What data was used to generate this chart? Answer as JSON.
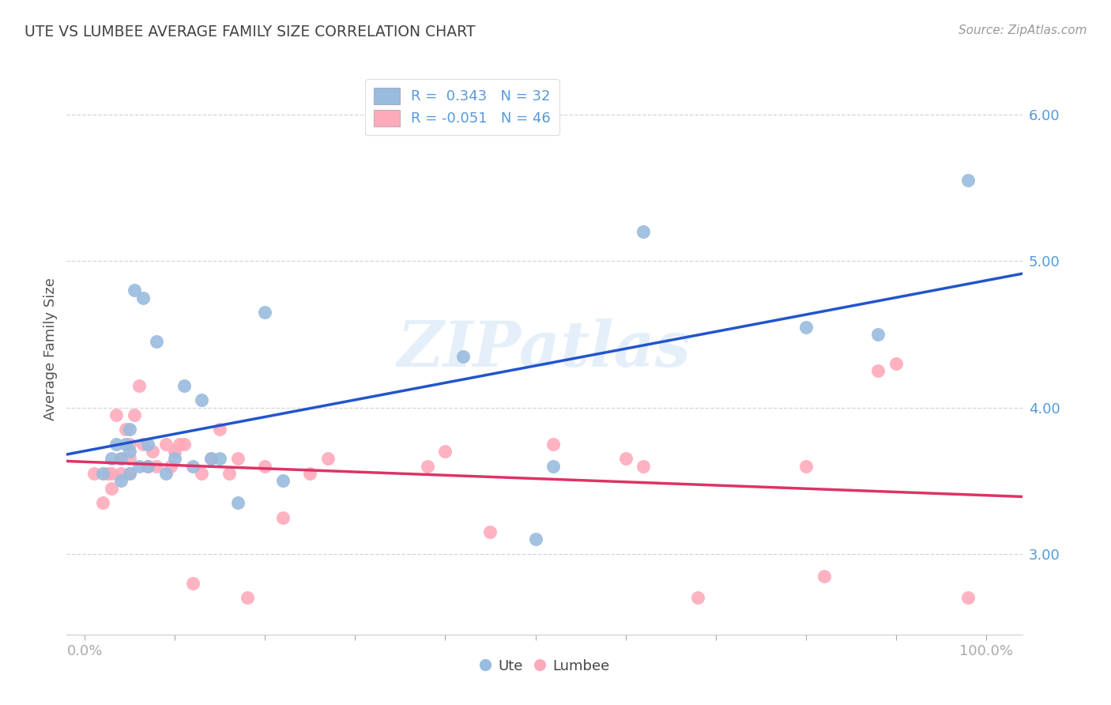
{
  "title": "UTE VS LUMBEE AVERAGE FAMILY SIZE CORRELATION CHART",
  "source": "Source: ZipAtlas.com",
  "ylabel": "Average Family Size",
  "yticks": [
    3.0,
    4.0,
    5.0,
    6.0
  ],
  "ylim": [
    2.45,
    6.35
  ],
  "xlim": [
    -0.02,
    1.04
  ],
  "legend_ute_r": "0.343",
  "legend_ute_n": "32",
  "legend_lumbee_r": "-0.051",
  "legend_lumbee_n": "46",
  "legend_bottom_ute": "Ute",
  "legend_bottom_lumbee": "Lumbee",
  "ute_color": "#99bbdd",
  "lumbee_color": "#ffaabb",
  "ute_line_color": "#2255cc",
  "lumbee_line_color": "#dd3366",
  "watermark": "ZIPatlas",
  "background_color": "#ffffff",
  "grid_color": "#cccccc",
  "tick_color": "#5599dd",
  "ute_x": [
    0.02,
    0.03,
    0.035,
    0.04,
    0.04,
    0.045,
    0.05,
    0.05,
    0.05,
    0.055,
    0.06,
    0.065,
    0.07,
    0.07,
    0.08,
    0.09,
    0.1,
    0.11,
    0.12,
    0.13,
    0.14,
    0.15,
    0.17,
    0.2,
    0.22,
    0.42,
    0.5,
    0.52,
    0.62,
    0.8,
    0.88,
    0.98
  ],
  "ute_y": [
    3.55,
    3.65,
    3.75,
    3.5,
    3.65,
    3.75,
    3.55,
    3.7,
    3.85,
    4.8,
    3.6,
    4.75,
    3.6,
    3.75,
    4.45,
    3.55,
    3.65,
    4.15,
    3.6,
    4.05,
    3.65,
    3.65,
    3.35,
    4.65,
    3.5,
    4.35,
    3.1,
    3.6,
    5.2,
    4.55,
    4.5,
    5.55
  ],
  "lumbee_x": [
    0.01,
    0.02,
    0.025,
    0.03,
    0.03,
    0.035,
    0.04,
    0.04,
    0.045,
    0.05,
    0.05,
    0.05,
    0.055,
    0.06,
    0.065,
    0.07,
    0.075,
    0.08,
    0.09,
    0.095,
    0.1,
    0.105,
    0.11,
    0.12,
    0.13,
    0.14,
    0.15,
    0.16,
    0.17,
    0.18,
    0.2,
    0.22,
    0.25,
    0.27,
    0.38,
    0.4,
    0.45,
    0.52,
    0.6,
    0.62,
    0.68,
    0.8,
    0.82,
    0.88,
    0.9,
    0.98
  ],
  "lumbee_y": [
    3.55,
    3.35,
    3.55,
    3.45,
    3.55,
    3.95,
    3.55,
    3.65,
    3.85,
    3.55,
    3.65,
    3.75,
    3.95,
    4.15,
    3.75,
    3.6,
    3.7,
    3.6,
    3.75,
    3.6,
    3.7,
    3.75,
    3.75,
    2.8,
    3.55,
    3.65,
    3.85,
    3.55,
    3.65,
    2.7,
    3.6,
    3.25,
    3.55,
    3.65,
    3.6,
    3.7,
    3.15,
    3.75,
    3.65,
    3.6,
    2.7,
    3.6,
    2.85,
    4.25,
    4.3,
    2.7
  ]
}
